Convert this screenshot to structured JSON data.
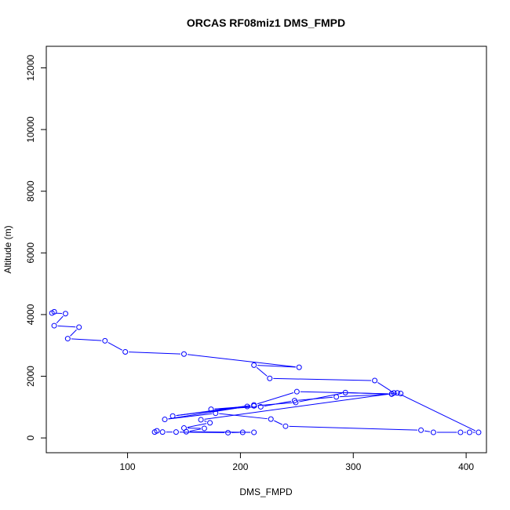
{
  "chart_data": {
    "type": "line",
    "title": "ORCAS RF08miz1 DMS_FMPD",
    "xlabel": "DMS_FMPD",
    "ylabel": "Altitude (m)",
    "xlim": [
      28,
      418
    ],
    "ylim": [
      -480,
      12700
    ],
    "x_ticks": [
      100,
      200,
      300,
      400
    ],
    "y_ticks": [
      0,
      2000,
      4000,
      6000,
      8000,
      10000,
      12000
    ],
    "colors": {
      "series": "#0000ff",
      "axis": "#000000"
    },
    "marker": "open-circle",
    "series": [
      {
        "x": [
          35,
          33,
          45,
          35,
          57,
          47,
          80,
          98,
          150,
          252,
          212,
          226,
          319,
          336,
          342,
          334,
          250,
          212,
          140,
          212,
          249,
          293,
          334,
          285,
          248,
          218,
          174,
          206,
          133,
          178,
          227,
          240,
          360,
          371,
          395,
          403,
          411,
          339,
          165,
          173,
          150,
          168,
          152,
          212,
          202,
          189,
          143,
          131,
          126,
          124
        ],
        "y": [
          4090,
          4050,
          4030,
          3640,
          3590,
          3220,
          3150,
          2790,
          2720,
          2290,
          2360,
          1930,
          1860,
          1460,
          1440,
          1430,
          1500,
          1070,
          710,
          1040,
          1150,
          1470,
          1420,
          1330,
          1210,
          1010,
          930,
          1020,
          600,
          800,
          610,
          380,
          250,
          180,
          180,
          180,
          180,
          1460,
          590,
          490,
          320,
          310,
          200,
          180,
          180,
          170,
          190,
          190,
          230,
          190
        ]
      }
    ]
  }
}
